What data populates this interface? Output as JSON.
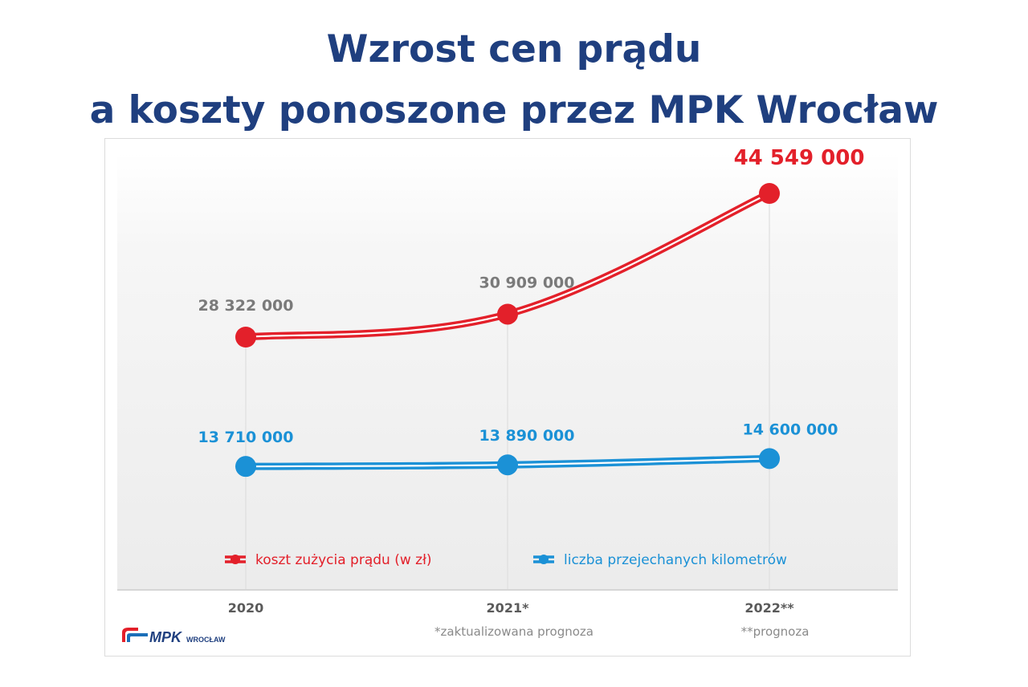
{
  "title_line1": "Wzrost cen prądu",
  "title_line2": "a koszty ponoszone przez MPK Wrocław",
  "chart_data": {
    "type": "line",
    "categories": [
      "2020",
      "2021*",
      "2022**"
    ],
    "series": [
      {
        "name": "koszt zużycia prądu (w zł)",
        "values": [
          28322000,
          30909000,
          44549000
        ],
        "labels": [
          "28 322 000",
          "30 909 000",
          "44 549 000"
        ],
        "color": "#e3202a"
      },
      {
        "name": "liczba przejechanych kilometrów",
        "values": [
          13710000,
          13890000,
          14600000
        ],
        "labels": [
          "13 710 000",
          "13 890 000",
          "14 600 000"
        ],
        "color": "#1b91d6"
      }
    ],
    "footnotes": [
      "*zaktualizowana prognoza",
      "**prognoza"
    ],
    "gray_label_color": "#7a7a7a"
  },
  "logo": {
    "text": "MPK",
    "subtext": "WROCŁAW"
  }
}
